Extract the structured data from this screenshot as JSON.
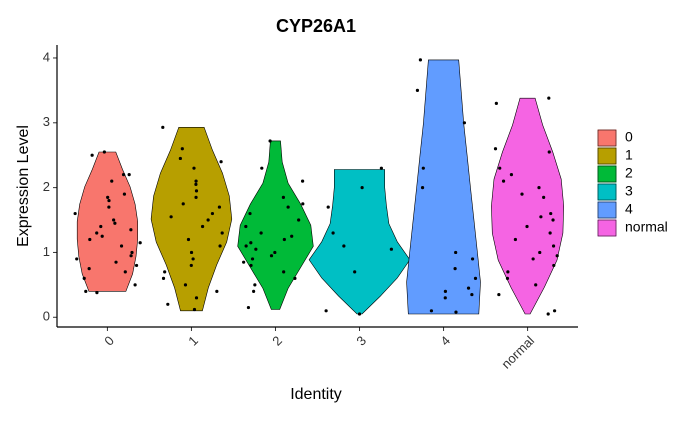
{
  "chart_data": {
    "type": "violin",
    "title": "CYP26A1",
    "x_label": "Identity",
    "y_label": "Expression Level",
    "categories": [
      "0",
      "1",
      "2",
      "3",
      "4",
      "normal"
    ],
    "ylim": [
      -0.15,
      4.2
    ],
    "yticks": [
      0,
      1,
      2,
      3,
      4
    ],
    "series": [
      {
        "name": "0",
        "color": "#F8766D",
        "ymin": 0.4,
        "ymax": 2.55,
        "widths": [
          0.22,
          0.3,
          0.34,
          0.36,
          0.36,
          0.33,
          0.27,
          0.18,
          0.1
        ],
        "points": [
          2.2,
          2.1,
          2.55,
          2.5,
          2.2,
          1.9,
          1.85,
          1.8,
          1.7,
          1.6,
          1.5,
          1.45,
          1.4,
          1.35,
          1.3,
          1.25,
          1.2,
          1.15,
          1.1,
          1.0,
          0.95,
          0.9,
          0.85,
          0.8,
          0.75,
          0.7,
          0.6,
          0.5,
          0.4,
          0.38
        ]
      },
      {
        "name": "1",
        "color": "#B79F00",
        "ymin": 0.1,
        "ymax": 2.93,
        "widths": [
          0.13,
          0.2,
          0.3,
          0.42,
          0.48,
          0.45,
          0.37,
          0.25,
          0.15
        ],
        "points": [
          2.93,
          2.6,
          2.45,
          2.4,
          2.3,
          2.1,
          2.05,
          1.95,
          1.85,
          1.75,
          1.7,
          1.6,
          1.55,
          1.5,
          1.4,
          1.3,
          1.2,
          1.1,
          1.0,
          0.9,
          0.8,
          0.7,
          0.6,
          0.5,
          0.4,
          0.3,
          0.2,
          0.12
        ]
      },
      {
        "name": "2",
        "color": "#00BA38",
        "ymin": 0.12,
        "ymax": 2.72,
        "widths": [
          0.05,
          0.15,
          0.3,
          0.45,
          0.42,
          0.3,
          0.15,
          0.08,
          0.06
        ],
        "points": [
          2.72,
          2.3,
          2.1,
          1.85,
          1.75,
          1.7,
          1.6,
          1.5,
          1.4,
          1.3,
          1.25,
          1.2,
          1.15,
          1.1,
          1.05,
          1.0,
          0.95,
          0.9,
          0.85,
          0.8,
          0.7,
          0.6,
          0.5,
          0.4,
          0.15
        ]
      },
      {
        "name": "3",
        "color": "#00BFC4",
        "ymin": 0.05,
        "ymax": 2.28,
        "widths": [
          0.03,
          0.25,
          0.45,
          0.6,
          0.45,
          0.35,
          0.32,
          0.3,
          0.3
        ],
        "points": [
          2.3,
          2.0,
          1.7,
          1.3,
          1.1,
          1.05,
          0.7,
          0.1,
          0.05
        ]
      },
      {
        "name": "4",
        "color": "#619CFF",
        "ymin": 0.05,
        "ymax": 3.97,
        "widths": [
          0.42,
          0.44,
          0.4,
          0.36,
          0.32,
          0.28,
          0.24,
          0.21,
          0.18
        ],
        "points": [
          3.97,
          3.5,
          3.0,
          2.3,
          2.0,
          1.0,
          0.9,
          0.75,
          0.6,
          0.45,
          0.4,
          0.35,
          0.3,
          0.1,
          0.08
        ]
      },
      {
        "name": "normal",
        "color": "#F564E3",
        "ymin": 0.05,
        "ymax": 3.38,
        "widths": [
          0.03,
          0.2,
          0.35,
          0.42,
          0.43,
          0.4,
          0.3,
          0.18,
          0.09
        ],
        "points": [
          3.38,
          3.3,
          2.6,
          2.55,
          2.3,
          2.2,
          2.1,
          2.0,
          1.9,
          1.85,
          1.6,
          1.55,
          1.5,
          1.4,
          1.3,
          1.2,
          1.1,
          1.0,
          0.95,
          0.9,
          0.8,
          0.7,
          0.6,
          0.5,
          0.35,
          0.1,
          0.05
        ]
      }
    ]
  }
}
